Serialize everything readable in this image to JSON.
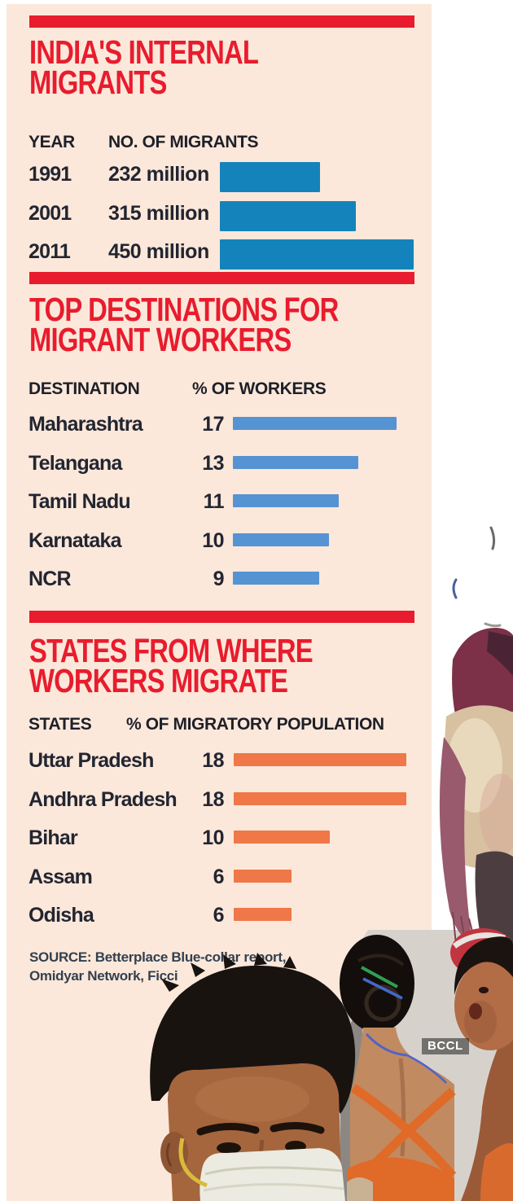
{
  "colors": {
    "accent_red": "#e81c2e",
    "panel_bg": "#fbe8da",
    "text_dark": "#232531",
    "bar_blue_dark": "#1583bb",
    "bar_blue_light": "#5593d3",
    "bar_orange": "#ef7748"
  },
  "chart_data": [
    {
      "type": "bar",
      "orientation": "horizontal",
      "id": "internal-migrants",
      "title": "INDIA'S INTERNAL MIGRANTS",
      "title_lines": [
        "INDIA'S INTERNAL",
        "MIGRANTS"
      ],
      "columns": [
        "YEAR",
        "NO. OF MIGRANTS"
      ],
      "categories": [
        "1991",
        "2001",
        "2011"
      ],
      "values": [
        232,
        315,
        450
      ],
      "value_labels": [
        "232 million",
        "315 million",
        "450 million"
      ],
      "unit": "million persons",
      "bar_color": "#1583bb",
      "xlim": [
        0,
        450
      ],
      "legend": "none",
      "grid": "off"
    },
    {
      "type": "bar",
      "orientation": "horizontal",
      "id": "top-destinations",
      "title": "TOP DESTINATIONS FOR MIGRANT WORKERS",
      "title_lines": [
        "TOP DESTINATIONS FOR",
        "MIGRANT WORKERS"
      ],
      "columns": [
        "DESTINATION",
        "% OF WORKERS"
      ],
      "categories": [
        "Maharashtra",
        "Telangana",
        "Tamil Nadu",
        "Karnataka",
        "NCR"
      ],
      "values": [
        17,
        13,
        11,
        10,
        9
      ],
      "value_labels": [
        "17",
        "13",
        "11",
        "10",
        "9"
      ],
      "unit": "% of workers",
      "bar_color": "#5593d3",
      "xlim": [
        0,
        17
      ],
      "legend": "none",
      "grid": "off"
    },
    {
      "type": "bar",
      "orientation": "horizontal",
      "id": "source-states",
      "title": "STATES FROM WHERE WORKERS MIGRATE",
      "title_lines": [
        "STATES FROM WHERE",
        "WORKERS MIGRATE"
      ],
      "columns": [
        "STATES",
        "% OF MIGRATORY POPULATION"
      ],
      "categories": [
        "Uttar Pradesh",
        "Andhra Pradesh",
        "Bihar",
        "Assam",
        "Odisha"
      ],
      "values": [
        18,
        18,
        10,
        6,
        6
      ],
      "value_labels": [
        "18",
        "18",
        "10",
        "6",
        "6"
      ],
      "unit": "% of migratory population",
      "bar_color": "#ef7748",
      "xlim": [
        0,
        18
      ],
      "legend": "none",
      "grid": "off"
    }
  ],
  "source_lines": [
    "SOURCE: Betterplace Blue-collar report,",
    "Omidyar Network, Ficci"
  ],
  "watermark": "BCCL"
}
